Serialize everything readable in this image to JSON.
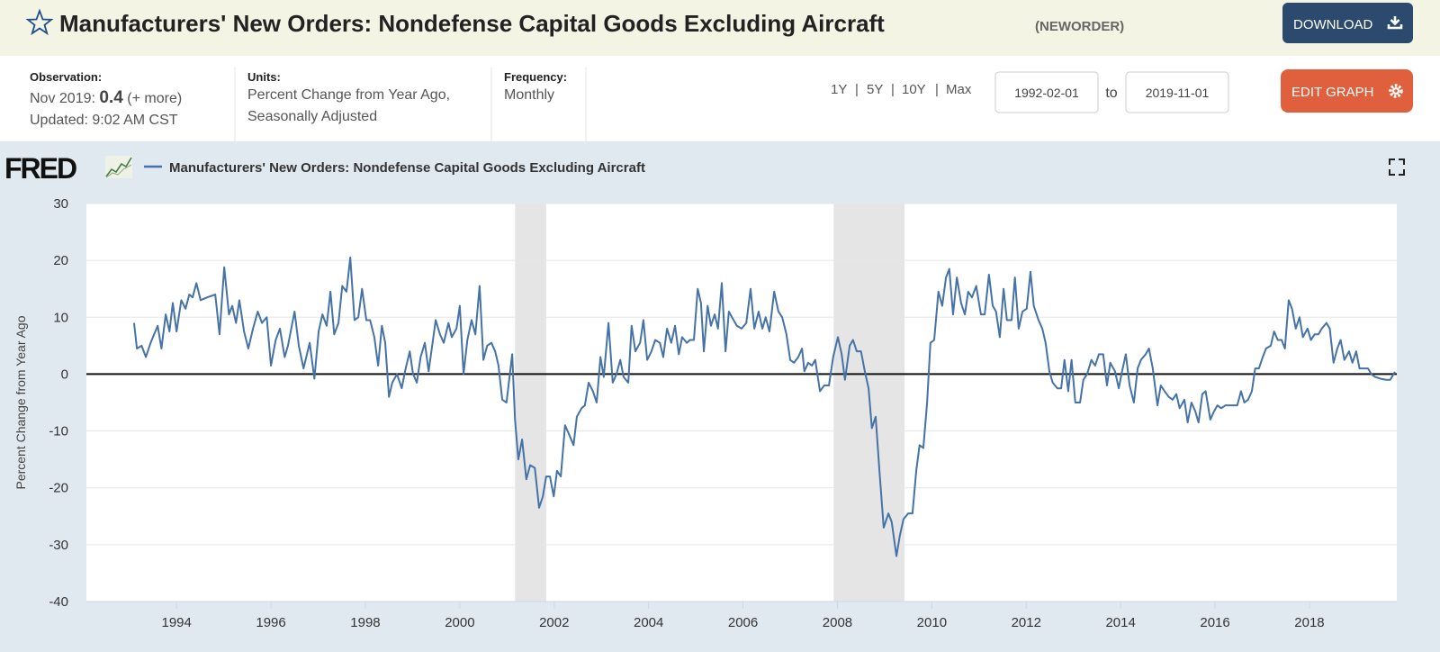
{
  "header": {
    "title": "Manufacturers' New Orders: Nondefense Capital Goods Excluding Aircraft",
    "series_id": "(NEWORDER)",
    "download": "DOWNLOAD"
  },
  "info": {
    "observation_label": "Observation:",
    "observation_date": "Nov 2019:",
    "observation_value": 0.4,
    "more": "(+ more)",
    "updated": "Updated: 9:02 AM CST",
    "units_label": "Units:",
    "units": [
      "Percent Change from Year Ago,",
      "Seasonally Adjusted"
    ],
    "frequency_label": "Frequency:",
    "frequency": "Monthly"
  },
  "controls": {
    "ranges": [
      "1Y",
      "5Y",
      "10Y",
      "Max"
    ],
    "separator": "|",
    "start": "1992-02-01",
    "to": "to",
    "end": "2019-11-01",
    "edit": "EDIT GRAPH"
  },
  "logo": "FRED",
  "chart_data": {
    "type": "line",
    "ylabel": "Percent Change from Year Ago",
    "xlim": [
      1992.09,
      2019.85
    ],
    "xticks": [
      1994,
      1996,
      1998,
      2000,
      2002,
      2004,
      2006,
      2008,
      2010,
      2012,
      2014,
      2016,
      2018
    ],
    "ylim": [
      -40,
      30
    ],
    "yticks": [
      -40,
      -30,
      -20,
      -10,
      0,
      10,
      20,
      30
    ],
    "grid": true,
    "recessions": [
      [
        2001.17,
        2001.83
      ],
      [
        2007.92,
        2009.42
      ]
    ],
    "x": [
      1993.1,
      1993.16,
      1993.26,
      1993.35,
      1993.45,
      1993.6,
      1993.68,
      1993.77,
      1993.85,
      1993.92,
      1994.0,
      1994.1,
      1994.19,
      1994.27,
      1994.34,
      1994.42,
      1994.51,
      1994.65,
      1994.82,
      1994.91,
      1995.01,
      1995.11,
      1995.18,
      1995.26,
      1995.33,
      1995.43,
      1995.52,
      1995.62,
      1995.72,
      1995.81,
      1995.91,
      1996.0,
      1996.1,
      1996.19,
      1996.29,
      1996.36,
      1996.5,
      1996.59,
      1996.69,
      1996.82,
      1996.92,
      1997.01,
      1997.09,
      1997.18,
      1997.26,
      1997.34,
      1997.43,
      1997.51,
      1997.6,
      1997.68,
      1997.77,
      1997.85,
      1997.93,
      1998.02,
      1998.1,
      1998.19,
      1998.27,
      1998.35,
      1998.42,
      1998.5,
      1998.57,
      1998.67,
      1998.77,
      1998.84,
      1998.94,
      1999.01,
      1999.09,
      1999.17,
      1999.26,
      1999.34,
      1999.49,
      1999.58,
      1999.66,
      1999.76,
      1999.83,
      1999.93,
      2000.0,
      2000.08,
      2000.16,
      2000.25,
      2000.33,
      2000.42,
      2000.5,
      2000.58,
      2000.67,
      2000.75,
      2000.82,
      2000.9,
      2000.99,
      2001.11,
      2001.17,
      2001.24,
      2001.32,
      2001.41,
      2001.49,
      2001.59,
      2001.68,
      2001.76,
      2001.83,
      2001.91,
      2001.99,
      2002.06,
      2002.14,
      2002.23,
      2002.31,
      2002.41,
      2002.48,
      2002.58,
      2002.65,
      2002.73,
      2002.82,
      2002.9,
      2002.98,
      2003.05,
      2003.15,
      2003.24,
      2003.32,
      2003.4,
      2003.47,
      2003.57,
      2003.64,
      2003.72,
      2003.82,
      2003.89,
      2003.97,
      2004.06,
      2004.14,
      2004.24,
      2004.31,
      2004.39,
      2004.48,
      2004.56,
      2004.64,
      2004.71,
      2004.81,
      2004.88,
      2004.96,
      2005.04,
      2005.11,
      2005.17,
      2005.25,
      2005.32,
      2005.4,
      2005.47,
      2005.55,
      2005.63,
      2005.7,
      2005.8,
      2005.87,
      2005.97,
      2006.07,
      2006.16,
      2006.24,
      2006.33,
      2006.41,
      2006.48,
      2006.56,
      2006.66,
      2006.75,
      2006.83,
      2006.92,
      2007.0,
      2007.08,
      2007.17,
      2007.25,
      2007.3,
      2007.38,
      2007.46,
      2007.53,
      2007.63,
      2007.72,
      2007.82,
      2007.91,
      2008.01,
      2008.09,
      2008.16,
      2008.26,
      2008.33,
      2008.41,
      2008.5,
      2008.58,
      2008.66,
      2008.73,
      2008.81,
      2008.89,
      2008.98,
      2009.08,
      2009.15,
      2009.25,
      2009.32,
      2009.4,
      2009.5,
      2009.59,
      2009.67,
      2009.74,
      2009.82,
      2009.9,
      2009.97,
      2010.05,
      2010.14,
      2010.22,
      2010.3,
      2010.37,
      2010.45,
      2010.53,
      2010.62,
      2010.7,
      2010.77,
      2010.85,
      2010.94,
      2011.04,
      2011.12,
      2011.21,
      2011.29,
      2011.36,
      2011.44,
      2011.52,
      2011.59,
      2011.69,
      2011.76,
      2011.84,
      2011.92,
      2012.01,
      2012.09,
      2012.16,
      2012.26,
      2012.34,
      2012.41,
      2012.49,
      2012.56,
      2012.66,
      2012.74,
      2012.81,
      2012.89,
      2012.96,
      2013.04,
      2013.14,
      2013.21,
      2013.29,
      2013.38,
      2013.46,
      2013.54,
      2013.63,
      2013.71,
      2013.78,
      2013.88,
      2013.96,
      2014.03,
      2014.11,
      2014.19,
      2014.28,
      2014.36,
      2014.43,
      2014.53,
      2014.6,
      2014.68,
      2014.78,
      2014.85,
      2014.93,
      2015.02,
      2015.1,
      2015.18,
      2015.25,
      2015.35,
      2015.42,
      2015.5,
      2015.58,
      2015.65,
      2015.73,
      2015.8,
      2015.9,
      2015.98,
      2016.05,
      2016.13,
      2016.22,
      2016.3,
      2016.38,
      2016.47,
      2016.55,
      2016.62,
      2016.7,
      2016.78,
      2016.85,
      2016.93,
      2017.01,
      2017.08,
      2017.18,
      2017.25,
      2017.33,
      2017.41,
      2017.48,
      2017.56,
      2017.63,
      2017.71,
      2017.79,
      2017.86,
      2017.96,
      2018.03,
      2018.11,
      2018.19,
      2018.26,
      2018.36,
      2018.43,
      2018.51,
      2018.59,
      2018.66,
      2018.74,
      2018.84,
      2018.91,
      2018.99,
      2019.06,
      2019.14,
      2019.24,
      2019.31,
      2019.39,
      2019.5,
      2019.62,
      2019.71,
      2019.81
    ],
    "series": [
      {
        "name": "Manufacturers' New Orders: Nondefense Capital Goods Excluding Aircraft",
        "color": "#4572a7",
        "values": [
          9,
          4.5,
          5,
          3,
          5.5,
          8.5,
          4.5,
          10.5,
          7.5,
          12.5,
          7.5,
          13,
          11.5,
          14,
          13.5,
          16,
          13,
          13.5,
          14,
          7,
          18.8,
          10.5,
          12,
          9,
          13,
          7.5,
          4.5,
          8,
          11,
          9,
          10,
          1.5,
          6,
          8,
          3,
          5,
          11,
          5,
          1,
          5.5,
          -0.8,
          7.5,
          10.5,
          8.5,
          14.5,
          7,
          9,
          15.5,
          14.5,
          20.5,
          9.5,
          10,
          15,
          9.5,
          9.5,
          6.5,
          1.5,
          8.5,
          5.5,
          -4,
          -1.5,
          0,
          -2.5,
          0.5,
          4,
          0,
          -1.5,
          3,
          5.5,
          0.5,
          9.5,
          7,
          5.5,
          9,
          6.5,
          8,
          12,
          0,
          6,
          9.5,
          7,
          15.5,
          2.5,
          5,
          5.5,
          4,
          1.5,
          -4.5,
          -5,
          3.5,
          -8,
          -15,
          -11.5,
          -18.5,
          -16,
          -16.5,
          -23.5,
          -21.5,
          -18,
          -18,
          -21.5,
          -17,
          -18,
          -9,
          -10.5,
          -12.5,
          -7.5,
          -6,
          -5.5,
          -1.5,
          -3,
          -5,
          3,
          -0.5,
          9,
          -1.5,
          0,
          2.5,
          -0.5,
          -1.5,
          8.5,
          4,
          5.5,
          9.5,
          2.5,
          4,
          6,
          5.5,
          3,
          8,
          5.5,
          8.5,
          3.5,
          6.5,
          5.5,
          6,
          6,
          15,
          12.5,
          4,
          12,
          8.5,
          10.5,
          8,
          16,
          4,
          11,
          9.5,
          8.5,
          8,
          9,
          15,
          8,
          11,
          8,
          10,
          7.5,
          14.5,
          11,
          10,
          7,
          2.5,
          2,
          3,
          4.5,
          0.5,
          2,
          1.5,
          2.5,
          -3,
          -2,
          -2,
          3,
          6.5,
          3.5,
          -1,
          5,
          6,
          4,
          4,
          0.5,
          -2.5,
          -9.5,
          -7.5,
          -17,
          -27,
          -24.5,
          -26,
          -32,
          -28.5,
          -25.5,
          -24.5,
          -24.5,
          -17,
          -12.5,
          -13,
          -5,
          5.5,
          6,
          14.5,
          12,
          17,
          18.5,
          10.5,
          17,
          12.5,
          10.5,
          14.5,
          13.5,
          15.5,
          10.5,
          10.5,
          17.5,
          12,
          11,
          6.5,
          15,
          9.5,
          9.5,
          17,
          8,
          11,
          11.5,
          18,
          12,
          9.5,
          8,
          5.5,
          0.5,
          -1.5,
          -2.5,
          -2.5,
          2.5,
          -3,
          2.5,
          -5,
          -5,
          -1,
          0,
          2.5,
          1.5,
          3.5,
          3.5,
          -2,
          2,
          0.5,
          -2.5,
          0.5,
          3.5,
          -2,
          -5,
          1,
          2.5,
          3.5,
          4.5,
          1,
          -5.5,
          -2,
          -3,
          -4,
          -4.5,
          -3.5,
          -6,
          -4.5,
          -8.5,
          -5,
          -6.5,
          -8.5,
          -3.5,
          -3,
          -8,
          -6.5,
          -5.5,
          -6,
          -5.5,
          -5.5,
          -5.5,
          -5.5,
          -3,
          -5,
          -4.5,
          -3,
          1,
          1,
          3,
          4.5,
          5,
          7.5,
          6,
          6,
          4.5,
          13,
          11.5,
          8,
          10,
          6.5,
          8,
          6,
          7,
          7,
          8,
          9,
          8,
          2,
          4.5,
          6,
          2.5,
          4,
          2,
          4,
          1,
          1,
          1,
          0,
          -0.5,
          -0.8,
          -1,
          -1,
          0.4
        ]
      }
    ]
  }
}
